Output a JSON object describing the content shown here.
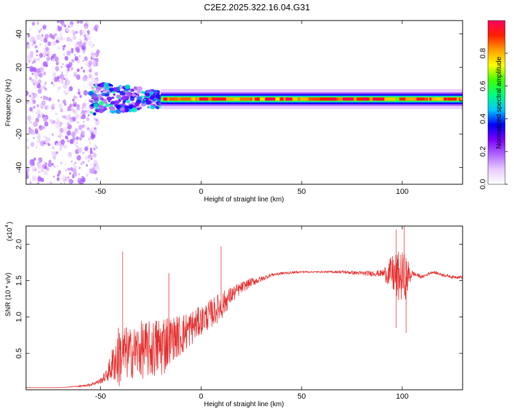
{
  "title": "C2E2.2025.322.16.04.G31",
  "colors": {
    "line": "#e53030",
    "axis": "#000000",
    "background": "#ffffff"
  },
  "chart_data": [
    {
      "type": "heatmap",
      "xlabel": "Height of straight line (km)",
      "ylabel": "Frequency (Hz)",
      "xlim": [
        -87,
        130
      ],
      "ylim": [
        -50,
        48
      ],
      "xticks": [
        -50,
        0,
        50,
        100
      ],
      "yticks": [
        -40,
        -20,
        0,
        20,
        40
      ],
      "colorbar": {
        "label": "Normalized spectral amplitude",
        "range": [
          0,
          1
        ],
        "ticks": [
          "0.0",
          "0.2",
          "0.4",
          "0.6",
          "0.8"
        ],
        "colormap": [
          "#ffffff",
          "#e8ccff",
          "#b066ff",
          "#7a00ff",
          "#0000ff",
          "#00c8ff",
          "#00ff80",
          "#40ff00",
          "#ffff00",
          "#ffa000",
          "#ff2000",
          "#ff0060"
        ]
      },
      "features": [
        {
          "x_range": [
            -87,
            -55
          ],
          "freq_range": [
            -50,
            48
          ],
          "amplitude": "0.05–0.2",
          "pattern": "scattered noise"
        },
        {
          "x_range": [
            -55,
            -20
          ],
          "freq_range": [
            -10,
            10
          ],
          "amplitude": "0.2–0.5",
          "pattern": "broadened signal"
        },
        {
          "x_range": [
            -20,
            130
          ],
          "freq_center": 1,
          "freq_halfwidth": 2,
          "amplitude": "0.8–1.0",
          "pattern": "narrow carrier line"
        }
      ]
    },
    {
      "type": "line",
      "xlabel": "Height of straight line (km)",
      "ylabel": "SNR (10 * v/v)",
      "y_scale_note": "(x10",
      "y_scale_exp": "4",
      "xlim": [
        -87,
        130
      ],
      "ylim": [
        0,
        2.25
      ],
      "xticks": [
        -50,
        0,
        50,
        100
      ],
      "yticks": [
        0.5,
        1.0,
        1.5,
        2.0
      ],
      "ytick_labels": [
        "0.5",
        "1.0",
        "1.5",
        "2.0"
      ],
      "series": [
        {
          "x": [
            -87,
            -70,
            -60,
            -55,
            -50,
            -47,
            -45,
            -43,
            -41,
            -39,
            -35,
            -30,
            -25,
            -20,
            -18,
            -15,
            -10,
            -5,
            0,
            5,
            10,
            15,
            20,
            25,
            30,
            35,
            40,
            50,
            60,
            70,
            80,
            90,
            95,
            97,
            100,
            102,
            105,
            110,
            115,
            120,
            125,
            130
          ],
          "y": [
            0.03,
            0.03,
            0.05,
            0.07,
            0.12,
            0.2,
            0.3,
            0.4,
            0.45,
            0.5,
            0.5,
            0.55,
            0.55,
            0.6,
            0.65,
            0.7,
            0.75,
            0.85,
            0.95,
            1.05,
            1.15,
            1.3,
            1.4,
            1.48,
            1.52,
            1.58,
            1.6,
            1.62,
            1.62,
            1.62,
            1.6,
            1.6,
            1.6,
            1.55,
            1.55,
            1.55,
            1.6,
            1.55,
            1.62,
            1.58,
            1.55,
            1.55
          ],
          "noise": [
            0.0,
            0.0,
            0.01,
            0.02,
            0.04,
            0.08,
            0.2,
            0.3,
            0.45,
            0.4,
            0.35,
            0.4,
            0.4,
            0.45,
            0.45,
            0.3,
            0.3,
            0.25,
            0.2,
            0.2,
            0.2,
            0.12,
            0.08,
            0.06,
            0.04,
            0.02,
            0.02,
            0.01,
            0.01,
            0.02,
            0.03,
            0.05,
            0.25,
            0.35,
            0.35,
            0.3,
            0.04,
            0.02,
            0.02,
            0.02,
            0.02,
            0.02
          ]
        }
      ],
      "spikes": [
        [
          -39,
          1.9
        ],
        [
          -16,
          1.6
        ],
        [
          10,
          1.97
        ],
        [
          97,
          2.2
        ],
        [
          101,
          2.25
        ],
        [
          102,
          0.78
        ],
        [
          97,
          0.85
        ]
      ]
    }
  ]
}
